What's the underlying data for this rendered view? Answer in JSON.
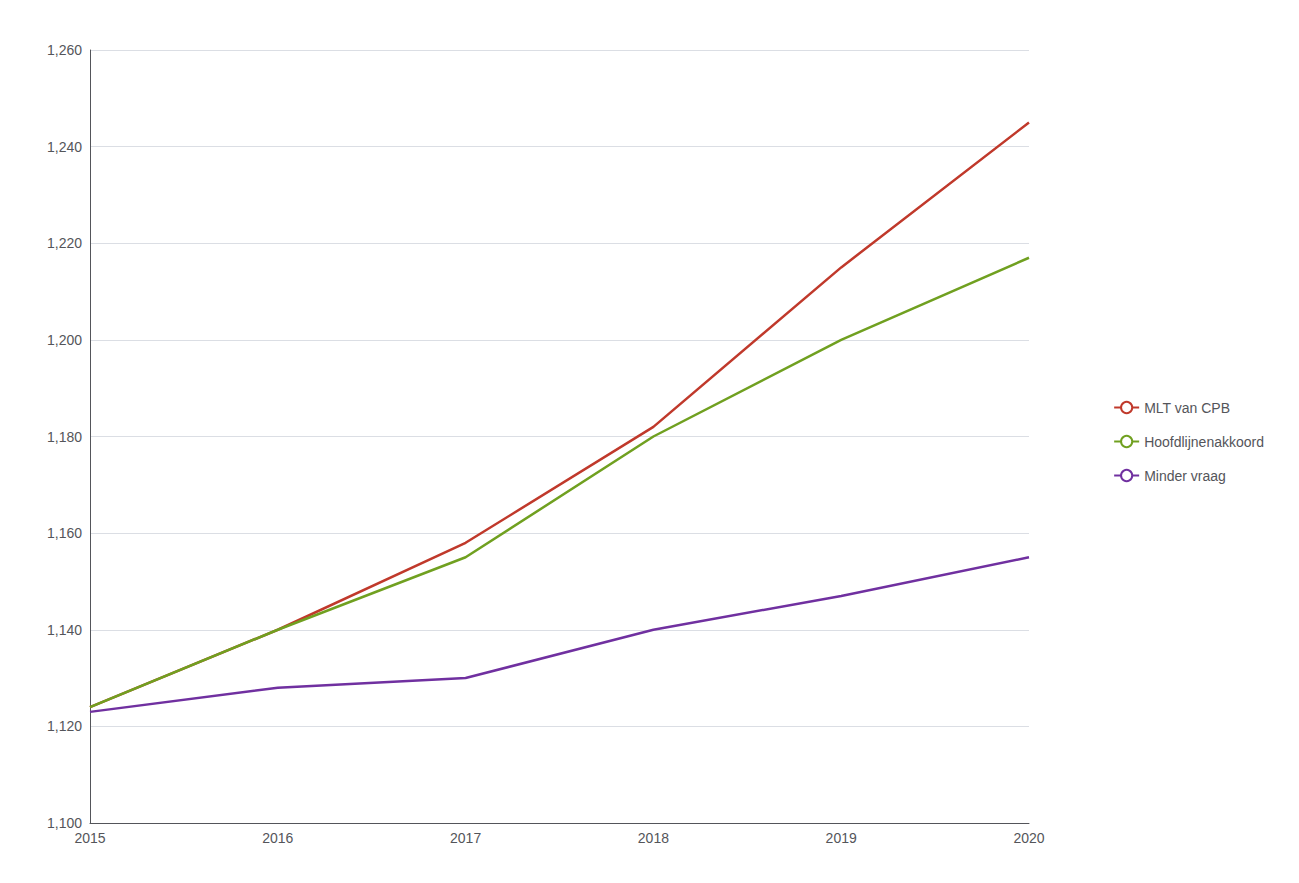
{
  "chart_data": {
    "type": "line",
    "x": [
      2015,
      2016,
      2017,
      2018,
      2019,
      2020
    ],
    "xlim": [
      2015,
      2020
    ],
    "xticks": [
      2015,
      2016,
      2017,
      2018,
      2019,
      2020
    ],
    "series": [
      {
        "name": "MLT van CPB",
        "color": "#c0392b",
        "values": [
          1124,
          1140,
          1158,
          1182,
          1215,
          1245
        ]
      },
      {
        "name": "Hoofdlijnenakkoord",
        "color": "#70a020",
        "values": [
          1124,
          1140,
          1155,
          1180,
          1200,
          1217
        ]
      },
      {
        "name": "Minder vraag",
        "color": "#7030a0",
        "values": [
          1123,
          1128,
          1130,
          1140,
          1147,
          1155
        ]
      }
    ],
    "ylim": [
      1100,
      1260
    ],
    "yticks": [
      {
        "value": 1100,
        "label": "1,100"
      },
      {
        "value": 1120,
        "label": "1,120"
      },
      {
        "value": 1140,
        "label": "1,140"
      },
      {
        "value": 1160,
        "label": "1,160"
      },
      {
        "value": 1180,
        "label": "1,180"
      },
      {
        "value": 1200,
        "label": "1,200"
      },
      {
        "value": 1220,
        "label": "1,220"
      },
      {
        "value": 1240,
        "label": "1,240"
      },
      {
        "value": 1260,
        "label": "1,260"
      }
    ],
    "grid": true,
    "legend": "right"
  }
}
